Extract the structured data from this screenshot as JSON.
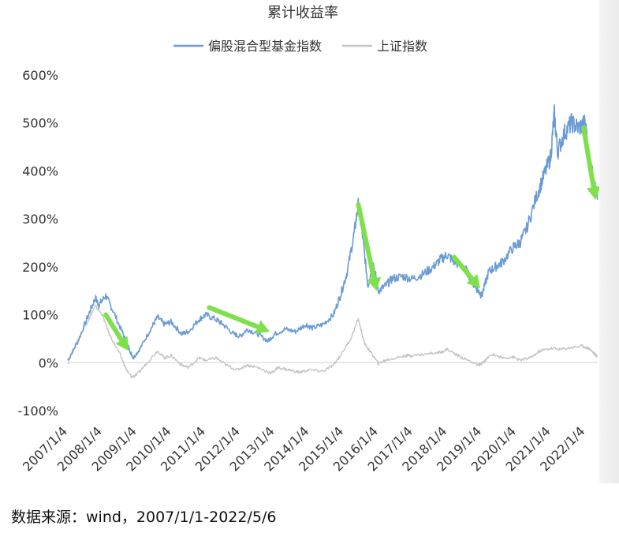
{
  "chart_data": {
    "type": "line",
    "title": "累计收益率",
    "y_ticks": [
      "600%",
      "500%",
      "400%",
      "300%",
      "200%",
      "100%",
      "0%",
      "-100%"
    ],
    "ylim": [
      -100,
      600
    ],
    "x_ticks": [
      "2007/1/4",
      "2008/1/4",
      "2009/1/4",
      "2010/1/4",
      "2011/1/4",
      "2012/1/4",
      "2013/1/4",
      "2014/1/4",
      "2015/1/4",
      "2016/1/4",
      "2017/1/4",
      "2018/1/4",
      "2019/1/4",
      "2020/1/4",
      "2021/1/4",
      "2022/1/4"
    ],
    "legend": "top-center",
    "series": [
      {
        "name": "偏股混合型基金指数",
        "color": "#6a9bd4",
        "points": [
          [
            2007.0,
            5
          ],
          [
            2007.3,
            45
          ],
          [
            2007.6,
            100
          ],
          [
            2007.8,
            135
          ],
          [
            2007.9,
            120
          ],
          [
            2008.1,
            140
          ],
          [
            2008.3,
            110
          ],
          [
            2008.6,
            60
          ],
          [
            2008.8,
            25
          ],
          [
            2008.9,
            10
          ],
          [
            2009.1,
            30
          ],
          [
            2009.4,
            70
          ],
          [
            2009.6,
            95
          ],
          [
            2009.8,
            80
          ],
          [
            2010.0,
            85
          ],
          [
            2010.3,
            60
          ],
          [
            2010.5,
            65
          ],
          [
            2010.8,
            90
          ],
          [
            2011.0,
            100
          ],
          [
            2011.3,
            90
          ],
          [
            2011.5,
            80
          ],
          [
            2011.8,
            60
          ],
          [
            2012.0,
            55
          ],
          [
            2012.2,
            70
          ],
          [
            2012.5,
            60
          ],
          [
            2012.8,
            45
          ],
          [
            2013.0,
            60
          ],
          [
            2013.3,
            70
          ],
          [
            2013.6,
            65
          ],
          [
            2013.9,
            80
          ],
          [
            2014.1,
            72
          ],
          [
            2014.4,
            80
          ],
          [
            2014.7,
            100
          ],
          [
            2014.9,
            140
          ],
          [
            2015.1,
            190
          ],
          [
            2015.3,
            270
          ],
          [
            2015.42,
            330
          ],
          [
            2015.55,
            260
          ],
          [
            2015.7,
            160
          ],
          [
            2015.85,
            210
          ],
          [
            2016.0,
            150
          ],
          [
            2016.2,
            160
          ],
          [
            2016.4,
            175
          ],
          [
            2016.7,
            180
          ],
          [
            2017.0,
            175
          ],
          [
            2017.3,
            185
          ],
          [
            2017.6,
            200
          ],
          [
            2017.8,
            215
          ],
          [
            2018.0,
            225
          ],
          [
            2018.2,
            210
          ],
          [
            2018.5,
            200
          ],
          [
            2018.7,
            170
          ],
          [
            2018.9,
            150
          ],
          [
            2019.0,
            140
          ],
          [
            2019.2,
            190
          ],
          [
            2019.4,
            200
          ],
          [
            2019.6,
            210
          ],
          [
            2019.9,
            240
          ],
          [
            2020.1,
            250
          ],
          [
            2020.3,
            280
          ],
          [
            2020.6,
            350
          ],
          [
            2020.8,
            390
          ],
          [
            2021.0,
            430
          ],
          [
            2021.1,
            520
          ],
          [
            2021.2,
            440
          ],
          [
            2021.4,
            480
          ],
          [
            2021.6,
            500
          ],
          [
            2021.8,
            490
          ],
          [
            2022.0,
            500
          ],
          [
            2022.1,
            430
          ],
          [
            2022.25,
            380
          ],
          [
            2022.35,
            340
          ]
        ]
      },
      {
        "name": "上证指数",
        "color": "#c4c4c4",
        "points": [
          [
            2007.0,
            0
          ],
          [
            2007.3,
            50
          ],
          [
            2007.6,
            90
          ],
          [
            2007.8,
            118
          ],
          [
            2008.0,
            100
          ],
          [
            2008.2,
            60
          ],
          [
            2008.5,
            20
          ],
          [
            2008.7,
            -15
          ],
          [
            2008.85,
            -30
          ],
          [
            2009.0,
            -25
          ],
          [
            2009.3,
            0
          ],
          [
            2009.6,
            25
          ],
          [
            2009.8,
            10
          ],
          [
            2010.0,
            15
          ],
          [
            2010.3,
            -5
          ],
          [
            2010.5,
            -10
          ],
          [
            2010.8,
            10
          ],
          [
            2011.0,
            5
          ],
          [
            2011.3,
            10
          ],
          [
            2011.6,
            -5
          ],
          [
            2011.9,
            -15
          ],
          [
            2012.2,
            -5
          ],
          [
            2012.5,
            -10
          ],
          [
            2012.9,
            -22
          ],
          [
            2013.1,
            -10
          ],
          [
            2013.4,
            -15
          ],
          [
            2013.7,
            -20
          ],
          [
            2014.0,
            -15
          ],
          [
            2014.4,
            -18
          ],
          [
            2014.7,
            -5
          ],
          [
            2014.9,
            15
          ],
          [
            2015.2,
            50
          ],
          [
            2015.42,
            92
          ],
          [
            2015.6,
            40
          ],
          [
            2015.8,
            20
          ],
          [
            2016.0,
            -2
          ],
          [
            2016.2,
            5
          ],
          [
            2016.5,
            10
          ],
          [
            2016.8,
            15
          ],
          [
            2017.0,
            15
          ],
          [
            2017.4,
            18
          ],
          [
            2017.8,
            22
          ],
          [
            2018.0,
            28
          ],
          [
            2018.3,
            15
          ],
          [
            2018.6,
            5
          ],
          [
            2018.9,
            -5
          ],
          [
            2019.0,
            -2
          ],
          [
            2019.3,
            18
          ],
          [
            2019.6,
            10
          ],
          [
            2019.9,
            12
          ],
          [
            2020.1,
            5
          ],
          [
            2020.4,
            10
          ],
          [
            2020.7,
            25
          ],
          [
            2021.0,
            30
          ],
          [
            2021.3,
            28
          ],
          [
            2021.6,
            32
          ],
          [
            2021.9,
            35
          ],
          [
            2022.1,
            30
          ],
          [
            2022.25,
            20
          ],
          [
            2022.35,
            12
          ]
        ]
      }
    ],
    "annotations": [
      {
        "type": "arrow",
        "color": "#7ee04a",
        "from": [
          2008.1,
          100
        ],
        "to": [
          2008.75,
          25
        ]
      },
      {
        "type": "arrow",
        "color": "#7ee04a",
        "from": [
          2011.1,
          115
        ],
        "to": [
          2012.85,
          65
        ]
      },
      {
        "type": "arrow",
        "color": "#7ee04a",
        "from": [
          2015.42,
          330
        ],
        "to": [
          2015.95,
          150
        ]
      },
      {
        "type": "arrow",
        "color": "#7ee04a",
        "from": [
          2018.2,
          220
        ],
        "to": [
          2018.95,
          155
        ]
      },
      {
        "type": "arrow",
        "color": "#7ee04a",
        "from": [
          2021.95,
          490
        ],
        "to": [
          2022.3,
          340
        ]
      }
    ]
  },
  "source_note": "数据来源：wind，2007/1/1-2022/5/6"
}
